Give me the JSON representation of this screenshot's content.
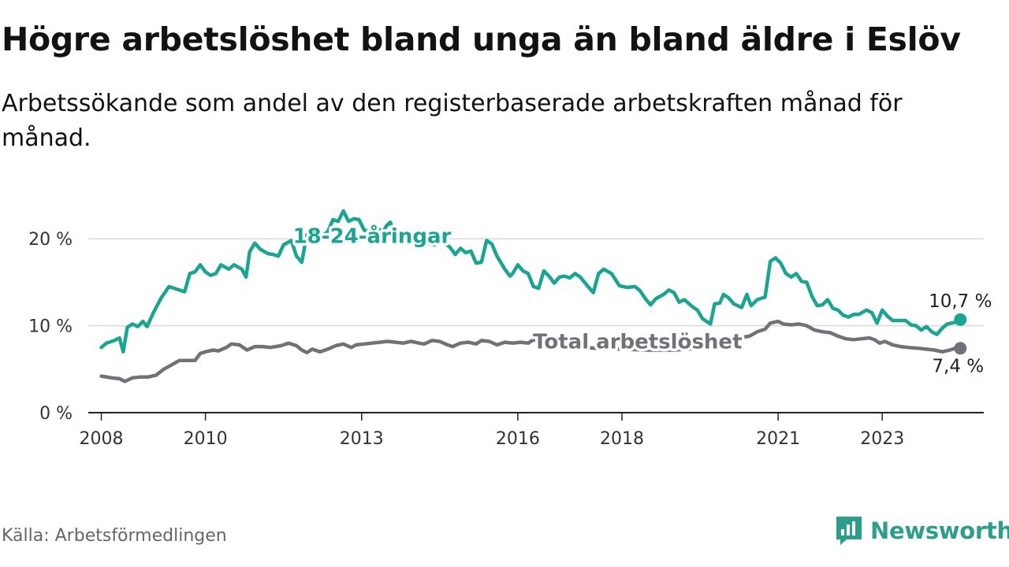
{
  "colors": {
    "youth": "#1aa491",
    "total": "#737078",
    "grid": "#d9d9d9",
    "axis": "#222222",
    "brand": "#2e9e8c"
  },
  "chart_data": {
    "type": "line",
    "title": "Högre arbetslöshet bland unga än bland äldre i Eslöv",
    "subtitle": "Arbetssökande som andel av den registerbaserade arbetskraften månad för månad.",
    "source": "Källa: Arbetsförmedlingen",
    "brand": "Newsworthy",
    "ylim": [
      0,
      25
    ],
    "xlim": [
      2007.75,
      2024.95
    ],
    "y_ticks": [
      {
        "value": 0,
        "label": "0 %"
      },
      {
        "value": 10,
        "label": "10 %"
      },
      {
        "value": 20,
        "label": "20 %"
      }
    ],
    "x_ticks": [
      {
        "value": 2008,
        "label": "2008"
      },
      {
        "value": 2010,
        "label": "2010"
      },
      {
        "value": 2013,
        "label": "2013"
      },
      {
        "value": 2016,
        "label": "2016"
      },
      {
        "value": 2018,
        "label": "2018"
      },
      {
        "value": 2021,
        "label": "2021"
      },
      {
        "value": 2023,
        "label": "2023"
      }
    ],
    "series": [
      {
        "name": "18-24-åringar",
        "label": "18-24-åringar",
        "end_label": "10,7 %",
        "points": [
          [
            2008.0,
            7.5
          ],
          [
            2008.1,
            8.0
          ],
          [
            2008.25,
            8.3
          ],
          [
            2008.35,
            8.6
          ],
          [
            2008.42,
            7.0
          ],
          [
            2008.5,
            9.8
          ],
          [
            2008.6,
            10.2
          ],
          [
            2008.7,
            9.9
          ],
          [
            2008.8,
            10.5
          ],
          [
            2008.88,
            9.9
          ],
          [
            2009.0,
            11.5
          ],
          [
            2009.15,
            13.2
          ],
          [
            2009.3,
            14.5
          ],
          [
            2009.45,
            14.2
          ],
          [
            2009.6,
            13.9
          ],
          [
            2009.7,
            16.0
          ],
          [
            2009.8,
            16.2
          ],
          [
            2009.9,
            17.0
          ],
          [
            2010.0,
            16.2
          ],
          [
            2010.1,
            15.8
          ],
          [
            2010.2,
            16.0
          ],
          [
            2010.3,
            17.0
          ],
          [
            2010.45,
            16.5
          ],
          [
            2010.55,
            17.0
          ],
          [
            2010.7,
            16.5
          ],
          [
            2010.78,
            15.6
          ],
          [
            2010.85,
            18.5
          ],
          [
            2010.95,
            19.5
          ],
          [
            2011.05,
            18.8
          ],
          [
            2011.2,
            18.3
          ],
          [
            2011.3,
            18.2
          ],
          [
            2011.4,
            18.0
          ],
          [
            2011.5,
            19.3
          ],
          [
            2011.65,
            19.8
          ],
          [
            2011.75,
            18.0
          ],
          [
            2011.85,
            17.3
          ],
          [
            2011.95,
            20.5
          ],
          [
            2012.05,
            19.8
          ],
          [
            2012.12,
            21.0
          ],
          [
            2012.2,
            20.2
          ],
          [
            2012.35,
            20.8
          ],
          [
            2012.45,
            22.2
          ],
          [
            2012.55,
            22.0
          ],
          [
            2012.65,
            23.2
          ],
          [
            2012.75,
            22.0
          ],
          [
            2012.85,
            22.3
          ],
          [
            2012.95,
            22.2
          ],
          [
            2013.05,
            21.0
          ],
          [
            2013.15,
            20.8
          ],
          [
            2013.3,
            21.3
          ],
          [
            2013.4,
            20.7
          ],
          [
            2013.48,
            21.5
          ],
          [
            2013.55,
            21.9
          ],
          [
            2013.65,
            20.3
          ],
          [
            2013.8,
            20.0
          ],
          [
            2013.95,
            20.2
          ],
          [
            2014.1,
            19.7
          ],
          [
            2014.25,
            19.5
          ],
          [
            2014.4,
            19.3
          ],
          [
            2014.55,
            19.8
          ],
          [
            2014.7,
            19.0
          ],
          [
            2014.8,
            18.2
          ],
          [
            2014.9,
            18.9
          ],
          [
            2015.0,
            18.4
          ],
          [
            2015.1,
            18.6
          ],
          [
            2015.2,
            17.2
          ],
          [
            2015.3,
            17.3
          ],
          [
            2015.4,
            19.8
          ],
          [
            2015.5,
            19.4
          ],
          [
            2015.6,
            18.0
          ],
          [
            2015.75,
            16.5
          ],
          [
            2015.85,
            15.7
          ],
          [
            2015.9,
            16.0
          ],
          [
            2016.0,
            17.0
          ],
          [
            2016.1,
            16.3
          ],
          [
            2016.2,
            16.0
          ],
          [
            2016.3,
            14.5
          ],
          [
            2016.4,
            14.3
          ],
          [
            2016.5,
            16.3
          ],
          [
            2016.6,
            15.7
          ],
          [
            2016.7,
            14.9
          ],
          [
            2016.8,
            15.6
          ],
          [
            2016.9,
            15.7
          ],
          [
            2017.0,
            15.5
          ],
          [
            2017.1,
            16.0
          ],
          [
            2017.2,
            15.6
          ],
          [
            2017.35,
            14.5
          ],
          [
            2017.45,
            13.8
          ],
          [
            2017.55,
            16.0
          ],
          [
            2017.65,
            16.5
          ],
          [
            2017.8,
            16.0
          ],
          [
            2017.95,
            14.6
          ],
          [
            2018.1,
            14.4
          ],
          [
            2018.25,
            14.5
          ],
          [
            2018.35,
            14.0
          ],
          [
            2018.45,
            13.1
          ],
          [
            2018.55,
            12.4
          ],
          [
            2018.65,
            13.1
          ],
          [
            2018.8,
            13.6
          ],
          [
            2018.9,
            14.1
          ],
          [
            2019.0,
            13.8
          ],
          [
            2019.1,
            12.7
          ],
          [
            2019.2,
            13.0
          ],
          [
            2019.35,
            12.2
          ],
          [
            2019.45,
            11.8
          ],
          [
            2019.55,
            10.8
          ],
          [
            2019.7,
            10.2
          ],
          [
            2019.78,
            12.5
          ],
          [
            2019.88,
            12.6
          ],
          [
            2019.95,
            13.6
          ],
          [
            2020.05,
            13.2
          ],
          [
            2020.15,
            12.5
          ],
          [
            2020.3,
            12.1
          ],
          [
            2020.4,
            13.6
          ],
          [
            2020.48,
            12.3
          ],
          [
            2020.6,
            13.0
          ],
          [
            2020.75,
            13.3
          ],
          [
            2020.85,
            17.4
          ],
          [
            2020.95,
            17.8
          ],
          [
            2021.05,
            17.2
          ],
          [
            2021.15,
            16.0
          ],
          [
            2021.25,
            15.6
          ],
          [
            2021.35,
            16.0
          ],
          [
            2021.45,
            15.1
          ],
          [
            2021.55,
            15.0
          ],
          [
            2021.65,
            13.4
          ],
          [
            2021.75,
            12.3
          ],
          [
            2021.85,
            12.4
          ],
          [
            2021.95,
            13.0
          ],
          [
            2022.05,
            12.0
          ],
          [
            2022.15,
            11.8
          ],
          [
            2022.25,
            11.2
          ],
          [
            2022.35,
            11.0
          ],
          [
            2022.45,
            11.3
          ],
          [
            2022.55,
            11.3
          ],
          [
            2022.7,
            11.8
          ],
          [
            2022.8,
            11.5
          ],
          [
            2022.9,
            10.3
          ],
          [
            2023.0,
            11.8
          ],
          [
            2023.1,
            11.1
          ],
          [
            2023.2,
            10.6
          ],
          [
            2023.3,
            10.6
          ],
          [
            2023.45,
            10.6
          ],
          [
            2023.55,
            10.1
          ],
          [
            2023.65,
            10.0
          ],
          [
            2023.75,
            9.5
          ],
          [
            2023.85,
            9.9
          ],
          [
            2023.95,
            9.3
          ],
          [
            2024.05,
            9.0
          ],
          [
            2024.15,
            9.7
          ],
          [
            2024.25,
            10.2
          ],
          [
            2024.4,
            10.4
          ],
          [
            2024.5,
            10.7
          ]
        ]
      },
      {
        "name": "Total arbetslöshet",
        "label": "Total arbetslöshet",
        "end_label": "7,4 %",
        "points": [
          [
            2008.0,
            4.2
          ],
          [
            2008.2,
            4.0
          ],
          [
            2008.35,
            3.9
          ],
          [
            2008.45,
            3.6
          ],
          [
            2008.6,
            4.0
          ],
          [
            2008.75,
            4.1
          ],
          [
            2008.9,
            4.1
          ],
          [
            2009.05,
            4.3
          ],
          [
            2009.2,
            5.0
          ],
          [
            2009.35,
            5.5
          ],
          [
            2009.5,
            6.0
          ],
          [
            2009.65,
            6.0
          ],
          [
            2009.8,
            6.0
          ],
          [
            2009.9,
            6.8
          ],
          [
            2010.0,
            7.0
          ],
          [
            2010.15,
            7.2
          ],
          [
            2010.25,
            7.1
          ],
          [
            2010.4,
            7.5
          ],
          [
            2010.5,
            7.9
          ],
          [
            2010.65,
            7.8
          ],
          [
            2010.8,
            7.2
          ],
          [
            2010.95,
            7.6
          ],
          [
            2011.1,
            7.6
          ],
          [
            2011.25,
            7.5
          ],
          [
            2011.45,
            7.7
          ],
          [
            2011.6,
            8.0
          ],
          [
            2011.75,
            7.7
          ],
          [
            2011.85,
            7.2
          ],
          [
            2011.95,
            6.9
          ],
          [
            2012.05,
            7.3
          ],
          [
            2012.2,
            7.0
          ],
          [
            2012.35,
            7.3
          ],
          [
            2012.5,
            7.7
          ],
          [
            2012.65,
            7.9
          ],
          [
            2012.8,
            7.5
          ],
          [
            2012.9,
            7.8
          ],
          [
            2013.05,
            7.9
          ],
          [
            2013.2,
            8.0
          ],
          [
            2013.35,
            8.1
          ],
          [
            2013.5,
            8.2
          ],
          [
            2013.65,
            8.1
          ],
          [
            2013.8,
            8.0
          ],
          [
            2013.95,
            8.2
          ],
          [
            2014.1,
            8.0
          ],
          [
            2014.2,
            7.9
          ],
          [
            2014.35,
            8.3
          ],
          [
            2014.5,
            8.2
          ],
          [
            2014.65,
            7.8
          ],
          [
            2014.75,
            7.6
          ],
          [
            2014.9,
            8.0
          ],
          [
            2015.05,
            8.1
          ],
          [
            2015.2,
            7.9
          ],
          [
            2015.3,
            8.3
          ],
          [
            2015.45,
            8.2
          ],
          [
            2015.6,
            7.8
          ],
          [
            2015.75,
            8.1
          ],
          [
            2015.9,
            8.0
          ],
          [
            2016.05,
            8.1
          ],
          [
            2016.2,
            8.0
          ],
          [
            2016.3,
            8.4
          ],
          [
            2016.45,
            8.2
          ],
          [
            2016.6,
            7.8
          ],
          [
            2016.8,
            7.9
          ],
          [
            2017.0,
            7.6
          ],
          [
            2017.5,
            7.4
          ],
          [
            2018.0,
            7.3
          ],
          [
            2018.5,
            7.2
          ],
          [
            2019.0,
            7.2
          ],
          [
            2019.5,
            7.4
          ],
          [
            2019.8,
            7.6
          ],
          [
            2019.95,
            8.0
          ],
          [
            2020.1,
            8.3
          ],
          [
            2020.25,
            8.6
          ],
          [
            2020.45,
            8.8
          ],
          [
            2020.6,
            9.3
          ],
          [
            2020.75,
            9.6
          ],
          [
            2020.85,
            10.3
          ],
          [
            2021.0,
            10.5
          ],
          [
            2021.1,
            10.2
          ],
          [
            2021.25,
            10.1
          ],
          [
            2021.4,
            10.2
          ],
          [
            2021.55,
            10.0
          ],
          [
            2021.7,
            9.5
          ],
          [
            2021.85,
            9.3
          ],
          [
            2022.0,
            9.2
          ],
          [
            2022.15,
            8.8
          ],
          [
            2022.3,
            8.5
          ],
          [
            2022.45,
            8.4
          ],
          [
            2022.6,
            8.5
          ],
          [
            2022.75,
            8.6
          ],
          [
            2022.85,
            8.4
          ],
          [
            2022.95,
            8.0
          ],
          [
            2023.05,
            8.2
          ],
          [
            2023.2,
            7.8
          ],
          [
            2023.35,
            7.6
          ],
          [
            2023.5,
            7.5
          ],
          [
            2023.7,
            7.4
          ],
          [
            2023.85,
            7.3
          ],
          [
            2024.0,
            7.2
          ],
          [
            2024.15,
            7.0
          ],
          [
            2024.3,
            7.2
          ],
          [
            2024.4,
            7.4
          ],
          [
            2024.5,
            7.4
          ]
        ]
      }
    ]
  }
}
